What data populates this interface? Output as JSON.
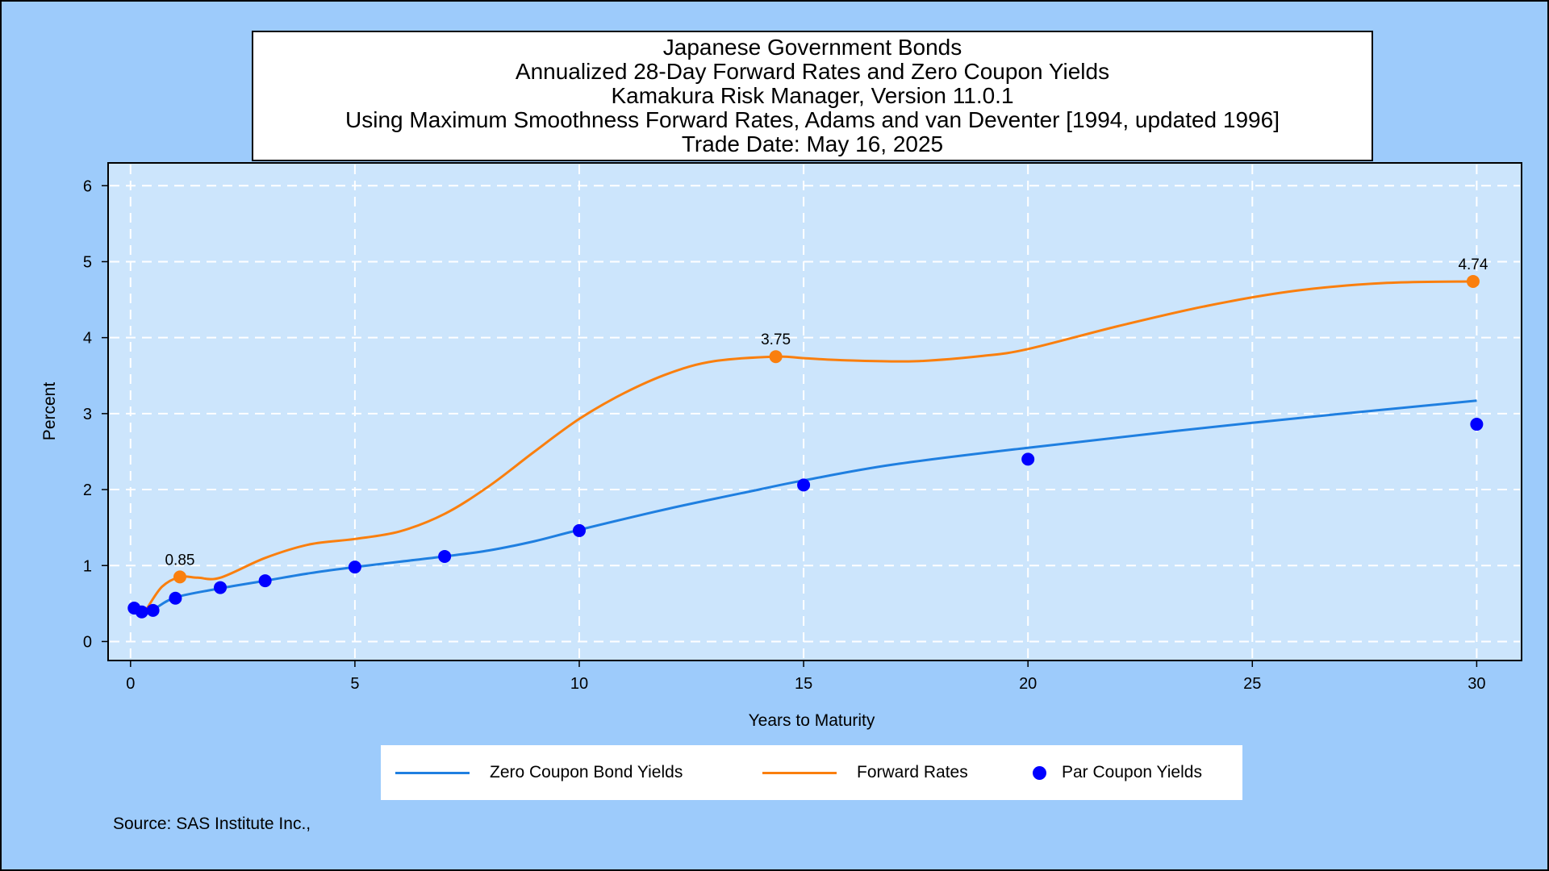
{
  "chart_data": {
    "type": "line",
    "title_lines": [
      "Japanese Government Bonds",
      "Annualized 28-Day Forward Rates and Zero Coupon Yields",
      "Kamakura Risk Manager, Version 11.0.1",
      "Using Maximum Smoothness Forward Rates, Adams and van Deventer [1994, updated 1996]",
      "Trade Date: May 16, 2025"
    ],
    "xlabel": "Years to Maturity",
    "ylabel": "Percent",
    "xlim": [
      -0.5,
      31
    ],
    "ylim": [
      -0.25,
      6.3
    ],
    "x_ticks": [
      0,
      5,
      10,
      15,
      20,
      25,
      30
    ],
    "y_ticks": [
      0,
      1,
      2,
      3,
      4,
      5,
      6
    ],
    "grid": true,
    "colors": {
      "zero_coupon": "#1f7fe0",
      "forward": "#fa7f0e",
      "par": "#0000ff",
      "plot_bg": "#cce5fc",
      "frame_bg": "#9dcbfb"
    },
    "series": [
      {
        "name": "Zero Coupon Bond Yields",
        "kind": "line",
        "x": [
          0.08,
          0.25,
          0.5,
          1,
          2,
          3,
          4,
          5,
          6,
          7,
          8,
          9,
          10,
          12,
          14,
          15,
          17,
          20,
          25,
          30
        ],
        "y": [
          0.43,
          0.39,
          0.42,
          0.58,
          0.7,
          0.8,
          0.9,
          0.98,
          1.05,
          1.12,
          1.2,
          1.32,
          1.47,
          1.75,
          2.0,
          2.12,
          2.33,
          2.55,
          2.88,
          3.17
        ]
      },
      {
        "name": "Forward Rates",
        "kind": "line",
        "x": [
          0.35,
          0.7,
          1.1,
          1.5,
          2.0,
          3.0,
          4.0,
          5.0,
          6.0,
          7.0,
          8.0,
          9.0,
          10.0,
          11.0,
          12.0,
          13.0,
          14.38,
          15.0,
          16.0,
          17.5,
          19.0,
          20.0,
          22.0,
          24.0,
          26.0,
          28.0,
          30.0
        ],
        "y": [
          0.42,
          0.72,
          0.85,
          0.84,
          0.84,
          1.1,
          1.28,
          1.35,
          1.45,
          1.68,
          2.05,
          2.5,
          2.93,
          3.27,
          3.53,
          3.69,
          3.75,
          3.73,
          3.7,
          3.69,
          3.76,
          3.85,
          4.15,
          4.42,
          4.62,
          4.72,
          4.74
        ]
      },
      {
        "name": "Par Coupon Yields",
        "kind": "scatter",
        "x": [
          0.08,
          0.25,
          0.5,
          1,
          2,
          3,
          5,
          7,
          10,
          15,
          20,
          30
        ],
        "y": [
          0.44,
          0.39,
          0.41,
          0.57,
          0.71,
          0.8,
          0.98,
          1.12,
          1.46,
          2.06,
          2.4,
          2.86
        ]
      }
    ],
    "annotations": [
      {
        "x": 1.1,
        "y": 0.85,
        "label": "0.85"
      },
      {
        "x": 14.38,
        "y": 3.75,
        "label": "3.75"
      },
      {
        "x": 29.92,
        "y": 4.74,
        "label": "4.74"
      }
    ],
    "legend_position": "bottom"
  },
  "source": "Source: SAS Institute Inc.,"
}
